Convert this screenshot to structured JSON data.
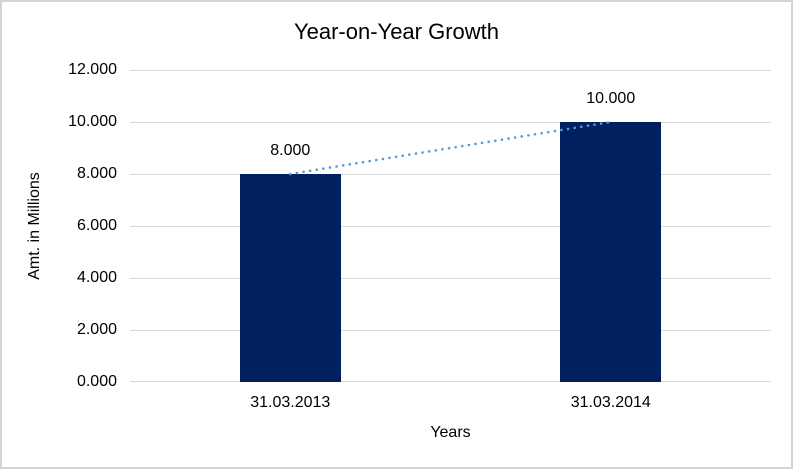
{
  "frame": {
    "background": "#ffffff",
    "border_color": "#d4d4d4"
  },
  "chart_data": {
    "type": "bar",
    "title": "Year-on-Year Growth",
    "xlabel": "Years",
    "ylabel": "Amt. in Millions",
    "categories": [
      "31.03.2013",
      "31.03.2014"
    ],
    "values": [
      8000,
      10000
    ],
    "data_labels": [
      "8.000",
      "10.000"
    ],
    "ylim": [
      0,
      12000
    ],
    "yticks": [
      {
        "value": 0,
        "label": "0.000"
      },
      {
        "value": 2000,
        "label": "2.000"
      },
      {
        "value": 4000,
        "label": "4.000"
      },
      {
        "value": 6000,
        "label": "6.000"
      },
      {
        "value": 8000,
        "label": "8.000"
      },
      {
        "value": 10000,
        "label": "10.000"
      },
      {
        "value": 12000,
        "label": "12.000"
      }
    ],
    "grid": true,
    "legend": false,
    "bar_color": "#002060",
    "gridline_color": "#D9D9D9",
    "text_color": "#000000",
    "trendline": {
      "type": "linear",
      "style": "dotted",
      "color": "#5B9BD5"
    }
  }
}
